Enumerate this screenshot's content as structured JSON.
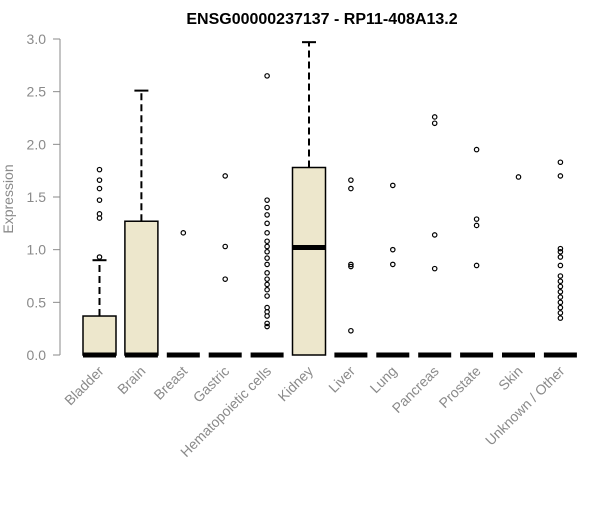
{
  "chart_data": {
    "type": "box",
    "title": "ENSG00000237137 - RP11-408A13.2",
    "xlabel": "",
    "ylabel": "Expression",
    "ylim": [
      0,
      3.0
    ],
    "yticks": [
      0.0,
      0.5,
      1.0,
      1.5,
      2.0,
      2.5,
      3.0
    ],
    "ytick_labels": [
      "0.0",
      "0.5",
      "1.0",
      "1.5",
      "2.0",
      "2.5",
      "3.0"
    ],
    "grid": false,
    "box_fill": "#ede7cc",
    "box_stroke": "#000000",
    "axis_color": "#8a8a8a",
    "categories": [
      "Bladder",
      "Brain",
      "Breast",
      "Gastric",
      "Hematopoietic cells",
      "Kidney",
      "Liver",
      "Lung",
      "Pancreas",
      "Prostate",
      "Skin",
      "Unknown / Other"
    ],
    "boxes": [
      {
        "q1": 0,
        "median": 0,
        "q3": 0.37,
        "whisker_low": 0,
        "whisker_high": 0.9,
        "outliers": [
          0.93,
          1.3,
          1.34,
          1.47,
          1.58,
          1.66,
          1.76
        ]
      },
      {
        "q1": 0,
        "median": 0,
        "q3": 1.27,
        "whisker_low": 0,
        "whisker_high": 2.51,
        "outliers": []
      },
      {
        "q1": 0,
        "median": 0,
        "q3": 0,
        "whisker_low": 0,
        "whisker_high": 0,
        "outliers": [
          1.16
        ]
      },
      {
        "q1": 0,
        "median": 0,
        "q3": 0,
        "whisker_low": 0,
        "whisker_high": 0,
        "outliers": [
          0.72,
          1.03,
          1.7
        ]
      },
      {
        "q1": 0,
        "median": 0,
        "q3": 0,
        "whisker_low": 0,
        "whisker_high": 0,
        "outliers": [
          0.27,
          0.3,
          0.37,
          0.41,
          0.45,
          0.56,
          0.62,
          0.67,
          0.72,
          0.78,
          0.86,
          0.92,
          0.98,
          1.03,
          1.08,
          1.16,
          1.25,
          1.33,
          1.4,
          1.47,
          2.65
        ]
      },
      {
        "q1": 0,
        "median": 1.02,
        "q3": 1.78,
        "whisker_low": 0,
        "whisker_high": 2.97,
        "outliers": []
      },
      {
        "q1": 0,
        "median": 0,
        "q3": 0,
        "whisker_low": 0,
        "whisker_high": 0,
        "outliers": [
          0.23,
          0.84,
          0.86,
          1.58,
          1.66
        ]
      },
      {
        "q1": 0,
        "median": 0,
        "q3": 0,
        "whisker_low": 0,
        "whisker_high": 0,
        "outliers": [
          0.86,
          1.0,
          1.61
        ]
      },
      {
        "q1": 0,
        "median": 0,
        "q3": 0,
        "whisker_low": 0,
        "whisker_high": 0,
        "outliers": [
          0.82,
          1.14,
          2.2,
          2.26
        ]
      },
      {
        "q1": 0,
        "median": 0,
        "q3": 0,
        "whisker_low": 0,
        "whisker_high": 0,
        "outliers": [
          0.85,
          1.23,
          1.29,
          1.95
        ]
      },
      {
        "q1": 0,
        "median": 0,
        "q3": 0,
        "whisker_low": 0,
        "whisker_high": 0,
        "outliers": [
          1.69
        ]
      },
      {
        "q1": 0,
        "median": 0,
        "q3": 0,
        "whisker_low": 0,
        "whisker_high": 0,
        "outliers": [
          0.35,
          0.4,
          0.45,
          0.5,
          0.55,
          0.6,
          0.65,
          0.7,
          0.75,
          0.85,
          0.93,
          0.98,
          1.01,
          1.7,
          1.83
        ]
      }
    ]
  }
}
